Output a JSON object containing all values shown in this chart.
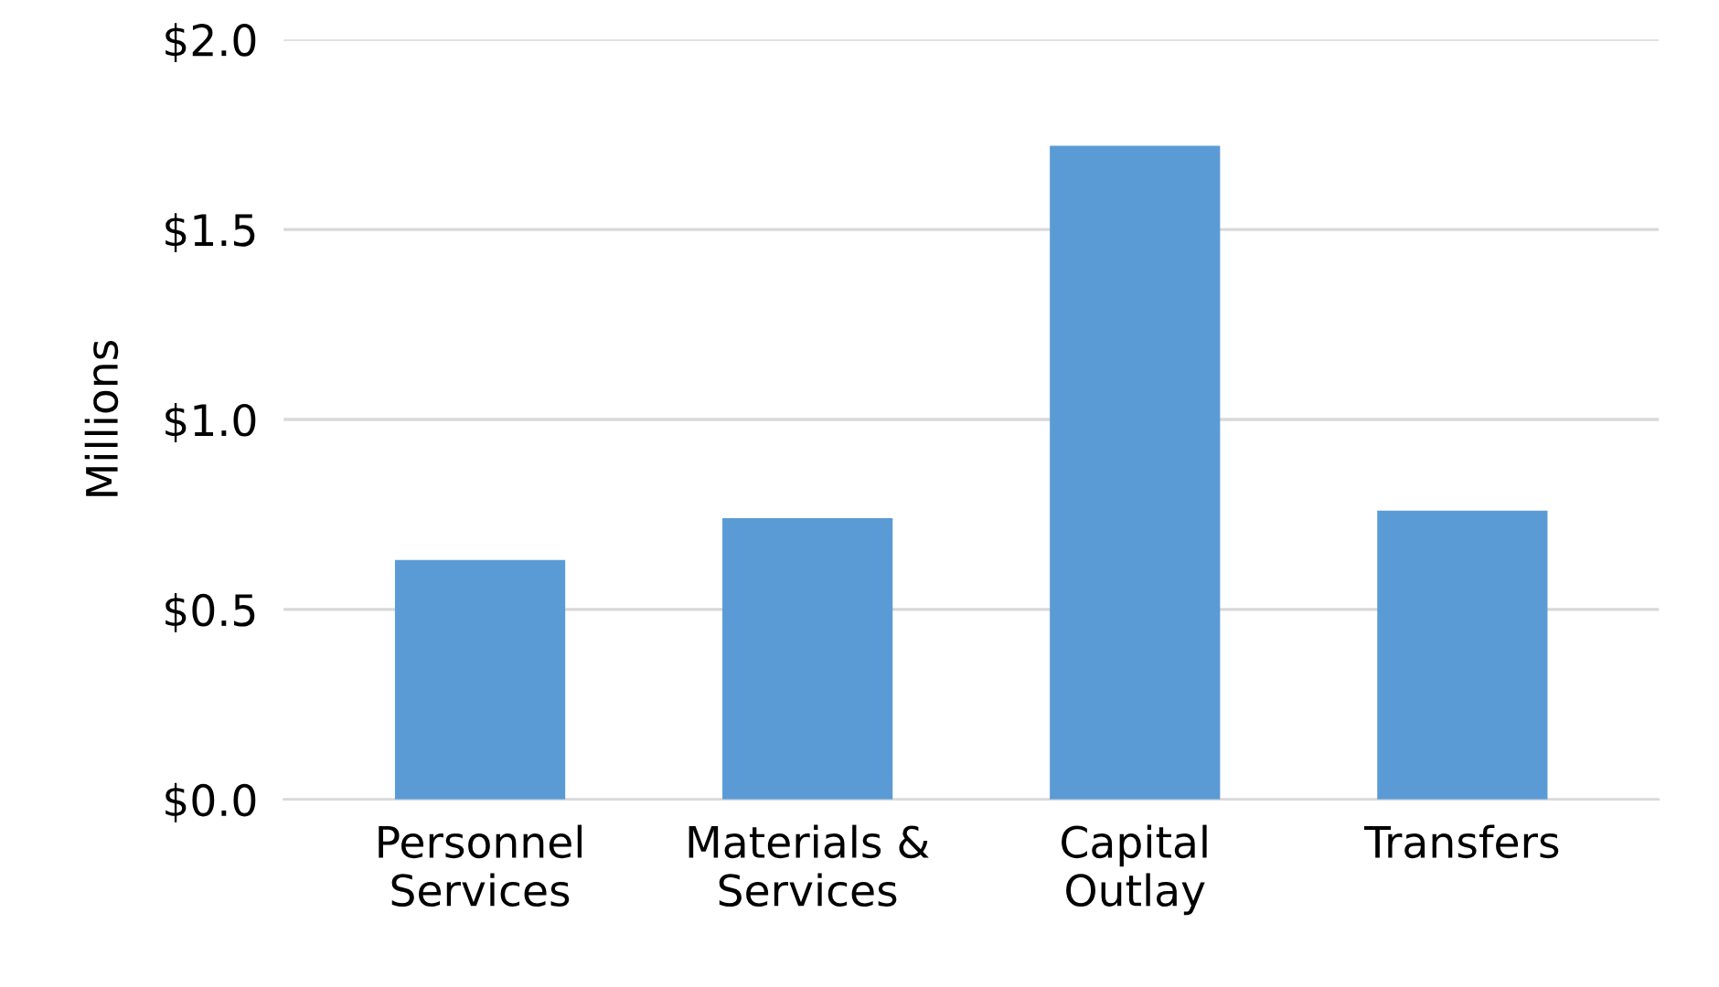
{
  "chart_data": {
    "type": "bar",
    "ylabel": "Millions",
    "categories": [
      "Personnel\nServices",
      "Materials &\nServices",
      "Capital\nOutlay",
      "Transfers"
    ],
    "values": [
      0.63,
      0.74,
      1.72,
      0.76
    ],
    "color": "#5b9bd5",
    "ylim": [
      0,
      2.0
    ],
    "yticks": [
      {
        "value": 0,
        "label": "$0.0"
      },
      {
        "value": 0.5,
        "label": "$0.5"
      },
      {
        "value": 1.0,
        "label": "$1.0"
      },
      {
        "value": 1.5,
        "label": "$1.5"
      },
      {
        "value": 2.0,
        "label": "$2.0"
      }
    ],
    "grid": "y"
  }
}
